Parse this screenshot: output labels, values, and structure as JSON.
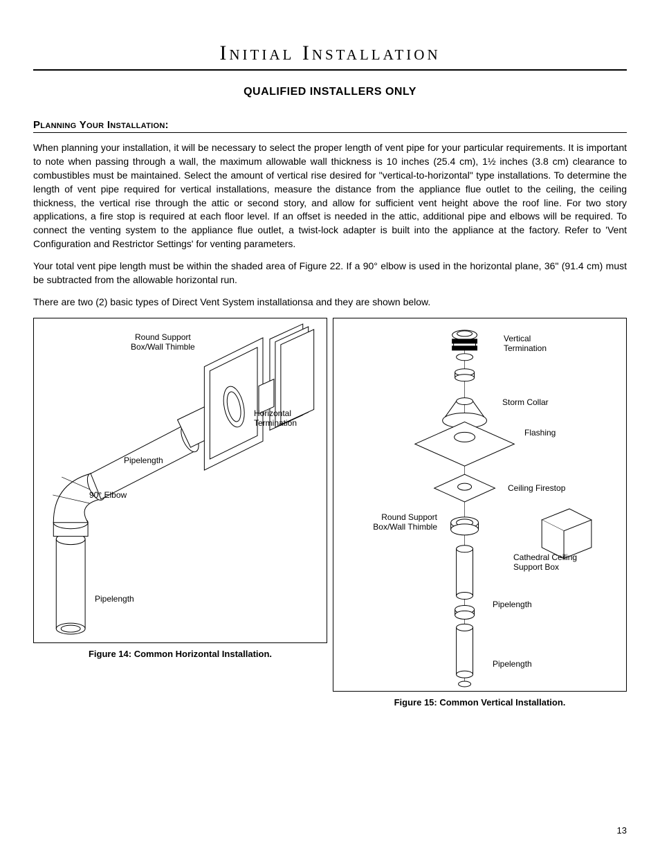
{
  "title": "Initial Installation",
  "subtitle": "QUALIFIED INSTALLERS ONLY",
  "section_heading": "Planning Your Installation:",
  "para1": "When planning your installation, it will be necessary to select the proper length of vent pipe for your particular requirements. It is important to note when passing through a wall, the maximum allowable wall thickness is 10 inches (25.4 cm), 1½ inches (3.8 cm) clearance to combustibles must be maintained. Select the amount of vertical rise desired for \"vertical-to-horizontal\" type installations. To determine the length of vent pipe required for vertical installations, measure the distance from the appliance flue outlet to the ceiling, the ceiling thickness, the vertical rise through the attic or second story, and allow for sufficient vent height above the roof line. For two story applications, a fire stop is required at each floor level. If an offset is needed in the attic, additional pipe and elbows will be required. To connect the venting system to the appliance flue outlet, a twist-lock adapter is built into the appliance at the factory. Refer to 'Vent Configuration and Restrictor Settings' for venting parameters.",
  "para2": "Your total vent pipe length must be within the shaded area of Figure 22. If a 90° elbow is used in the horizontal plane, 36\" (91.4 cm) must be subtracted from the allowable horizontal run.",
  "para3": "There are two (2) basic types of Direct Vent System installationsa and they are shown below.",
  "figure14": {
    "caption": "Figure 14: Common Horizontal Installation.",
    "labels": {
      "round_support": "Round Support\nBox/Wall Thimble",
      "horizontal_termination": "Horizontal\nTermination",
      "pipelength_upper": "Pipelength",
      "elbow": "90° Elbow",
      "pipelength_lower": "Pipelength"
    }
  },
  "figure15": {
    "caption": "Figure 15: Common Vertical Installation.",
    "labels": {
      "vertical_termination": "Vertical\nTermination",
      "storm_collar": "Storm Collar",
      "flashing": "Flashing",
      "ceiling_firestop": "Ceiling Firestop",
      "round_support": "Round Support\nBox/Wall Thimble",
      "cathedral": "Cathedral Ceiling\nSupport Box",
      "pipelength_upper": "Pipelength",
      "pipelength_lower": "Pipelength"
    }
  },
  "page_number": "13",
  "colors": {
    "stroke": "#000000",
    "fill": "#ffffff"
  }
}
